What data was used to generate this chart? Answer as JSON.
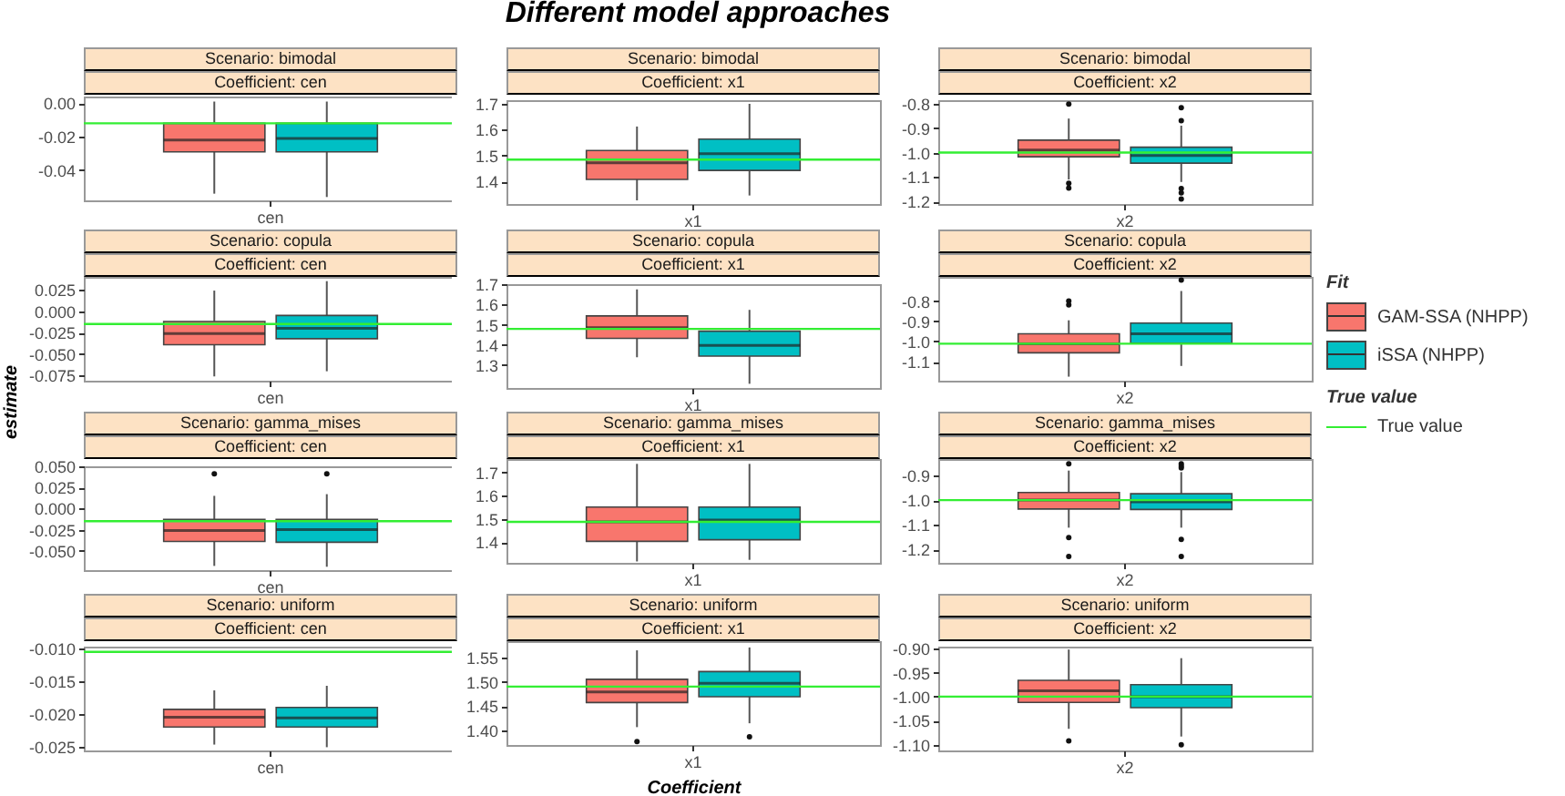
{
  "chart_data": [
    {
      "type": "box",
      "title": "Scenario: bimodal",
      "subtitle": "Coefficient: cen",
      "categories": [
        "cen"
      ],
      "series": [
        {
          "color": "#f8766d",
          "boxes": [
            {
              "low": -0.054,
              "q1": -0.029,
              "median": -0.022,
              "q3": -0.012,
              "high": 0.001
            }
          ]
        },
        {
          "color": "#00bfc4",
          "boxes": [
            {
              "low": -0.056,
              "q1": -0.029,
              "median": -0.021,
              "q3": -0.012,
              "high": 0.001
            }
          ]
        }
      ],
      "ylim": [
        -0.058,
        0.004
      ],
      "yticks": [
        {
          "value": 0,
          "label": "0.00"
        },
        {
          "value": -0.02,
          "label": "-0.02"
        },
        {
          "value": -0.04,
          "label": "-0.04"
        }
      ],
      "ref_lines": [
        {
          "axis": "y",
          "value": -0.012,
          "color": "#33ee33"
        }
      ]
    },
    {
      "type": "box",
      "title": "Scenario: bimodal",
      "subtitle": "Coefficient: x1",
      "categories": [
        "x1"
      ],
      "series": [
        {
          "color": "#f8766d",
          "boxes": [
            {
              "low": 1.326,
              "q1": 1.407,
              "median": 1.472,
              "q3": 1.519,
              "high": 1.612
            }
          ]
        },
        {
          "color": "#00bfc4",
          "boxes": [
            {
              "low": 1.345,
              "q1": 1.442,
              "median": 1.507,
              "q3": 1.563,
              "high": 1.7
            }
          ]
        }
      ],
      "ylim": [
        1.312,
        1.714
      ],
      "yticks": [
        1.4,
        1.5,
        1.6,
        1.7
      ],
      "ref_lines": [
        {
          "axis": "y",
          "value": 1.484,
          "color": "#33ee33"
        }
      ],
      "annotations": [
        "Different model approaches"
      ]
    },
    {
      "type": "box",
      "title": "Scenario: bimodal",
      "subtitle": "Coefficient: x2",
      "categories": [
        "x2"
      ],
      "series": [
        {
          "color": "#f8766d",
          "boxes": [
            {
              "low": -1.11,
              "q1": -1.017,
              "median": -0.99,
              "q3": -0.949,
              "high": -0.861,
              "outliers": [
                -0.802,
                -1.125,
                -1.145
              ]
            }
          ]
        },
        {
          "color": "#00bfc4",
          "boxes": [
            {
              "low": -1.12,
              "q1": -1.043,
              "median": -1.012,
              "q3": -0.978,
              "high": -0.89,
              "outliers": [
                -0.817,
                -0.87,
                -1.147,
                -1.164,
                -1.19
              ]
            }
          ]
        }
      ],
      "ylim": [
        -1.21,
        -0.786
      ],
      "yticks": [
        -0.8,
        -0.9,
        {
          "value": -1,
          "label": "-1.0"
        },
        -1.1,
        -1.2
      ],
      "ref_lines": [
        {
          "axis": "y",
          "value": -1.0,
          "color": "#33ee33"
        }
      ]
    },
    {
      "type": "box",
      "title": "Scenario: copula",
      "subtitle": "Coefficient: cen",
      "ylabel": "estimate",
      "categories": [
        "cen"
      ],
      "series": [
        {
          "color": "#f8766d",
          "boxes": [
            {
              "low": -0.076,
              "q1": -0.039,
              "median": -0.026,
              "q3": -0.012,
              "high": 0.024
            }
          ]
        },
        {
          "color": "#00bfc4",
          "boxes": [
            {
              "low": -0.07,
              "q1": -0.032,
              "median": -0.02,
              "q3": -0.005,
              "high": 0.035
            }
          ]
        }
      ],
      "ylim": [
        -0.081,
        0.04
      ],
      "yticks": [
        0.025,
        {
          "value": 0,
          "label": "0.000"
        },
        -0.025,
        {
          "value": -0.05,
          "label": "-0.050"
        },
        -0.075
      ],
      "ref_lines": [
        {
          "axis": "y",
          "value": -0.015,
          "color": "#33ee33"
        }
      ]
    },
    {
      "type": "box",
      "title": "Scenario: copula",
      "subtitle": "Coefficient: x1",
      "categories": [
        "x1"
      ],
      "series": [
        {
          "color": "#f8766d",
          "boxes": [
            {
              "low": 1.338,
              "q1": 1.432,
              "median": 1.485,
              "q3": 1.544,
              "high": 1.676
            }
          ]
        },
        {
          "color": "#00bfc4",
          "boxes": [
            {
              "low": 1.206,
              "q1": 1.344,
              "median": 1.397,
              "q3": 1.468,
              "high": 1.574
            }
          ]
        }
      ],
      "ylim": [
        1.185,
        1.702
      ],
      "yticks": [
        1.3,
        1.4,
        1.5,
        1.6,
        1.7
      ],
      "ref_lines": [
        {
          "axis": "y",
          "value": 1.479,
          "color": "#33ee33"
        }
      ]
    },
    {
      "type": "box",
      "title": "Scenario: copula",
      "subtitle": "Coefficient: x2",
      "legend": "right",
      "legend_title": "Fit",
      "annotations": [
        "True value"
      ],
      "categories": [
        "x2"
      ],
      "series": [
        {
          "name": "GAM-SSA (NHPP)",
          "color": "#f8766d",
          "boxes": [
            {
              "low": -1.174,
              "q1": -1.056,
              "median": -1.011,
              "q3": -0.962,
              "high": -0.895,
              "outliers": [
                -0.8,
                -0.819
              ]
            }
          ]
        },
        {
          "name": "iSSA (NHPP)",
          "color": "#00bfc4",
          "boxes": [
            {
              "low": -1.121,
              "q1": -1.008,
              "median": -0.962,
              "q3": -0.909,
              "high": -0.75,
              "outliers": [
                -0.696
              ]
            }
          ]
        }
      ],
      "ylim": [
        -1.194,
        -0.68
      ],
      "yticks": [
        -0.8,
        -0.9,
        {
          "value": -1,
          "label": "-1.0"
        },
        -1.1
      ],
      "ref_lines": [
        {
          "axis": "y",
          "value": -1.011,
          "label": "True value",
          "color": "#33ee33"
        }
      ]
    },
    {
      "type": "box",
      "title": "Scenario: gamma_mises",
      "subtitle": "Coefficient: cen",
      "categories": [
        "cen"
      ],
      "series": [
        {
          "color": "#f8766d",
          "boxes": [
            {
              "low": -0.068,
              "q1": -0.039,
              "median": -0.026,
              "q3": -0.013,
              "high": 0.015,
              "outliers": [
                0.041
              ]
            }
          ]
        },
        {
          "color": "#00bfc4",
          "boxes": [
            {
              "low": -0.069,
              "q1": -0.04,
              "median": -0.025,
              "q3": -0.013,
              "high": 0.017,
              "outliers": [
                0.041
              ]
            }
          ]
        }
      ],
      "ylim": [
        -0.073,
        0.05
      ],
      "yticks": [
        {
          "value": 0.05,
          "label": "0.050"
        },
        0.025,
        {
          "value": 0,
          "label": "0.000"
        },
        -0.025,
        {
          "value": -0.05,
          "label": "-0.050"
        }
      ],
      "ref_lines": [
        {
          "axis": "y",
          "value": -0.015,
          "color": "#33ee33"
        }
      ]
    },
    {
      "type": "box",
      "title": "Scenario: gamma_mises",
      "subtitle": "Coefficient: x1",
      "categories": [
        "x1"
      ],
      "series": [
        {
          "color": "#f8766d",
          "boxes": [
            {
              "low": 1.316,
              "q1": 1.403,
              "median": 1.487,
              "q3": 1.551,
              "high": 1.738
            }
          ]
        },
        {
          "color": "#00bfc4",
          "boxes": [
            {
              "low": 1.323,
              "q1": 1.41,
              "median": 1.495,
              "q3": 1.551,
              "high": 1.738
            }
          ]
        }
      ],
      "ylim": [
        1.31,
        1.759
      ],
      "yticks": [
        1.4,
        1.5,
        1.6,
        1.7
      ],
      "ref_lines": [
        {
          "axis": "y",
          "value": 1.487,
          "color": "#33ee33"
        }
      ]
    },
    {
      "type": "box",
      "title": "Scenario: gamma_mises",
      "subtitle": "Coefficient: x2",
      "categories": [
        "x2"
      ],
      "series": [
        {
          "color": "#f8766d",
          "boxes": [
            {
              "low": -1.112,
              "q1": -1.036,
              "median": -1.0,
              "q3": -0.969,
              "high": -0.88,
              "outliers": [
                -0.852,
                -1.152,
                -1.229
              ]
            }
          ]
        },
        {
          "color": "#00bfc4",
          "boxes": [
            {
              "low": -1.112,
              "q1": -1.038,
              "median": -1.007,
              "q3": -0.974,
              "high": -0.886,
              "outliers": [
                -0.852,
                -0.862,
                -0.869,
                -1.16,
                -1.229
              ]
            }
          ]
        }
      ],
      "ylim": [
        -1.255,
        -0.833
      ],
      "yticks": [
        -0.9,
        {
          "value": -1,
          "label": "-1.0"
        },
        -1.1,
        -1.2
      ],
      "ref_lines": [
        {
          "axis": "y",
          "value": -1.0,
          "color": "#33ee33"
        }
      ]
    },
    {
      "type": "box",
      "title": "Scenario: uniform",
      "subtitle": "Coefficient: cen",
      "categories": [
        "cen"
      ],
      "series": [
        {
          "color": "#f8766d",
          "boxes": [
            {
              "low": -0.0247,
              "q1": -0.022,
              "median": -0.0205,
              "q3": -0.0193,
              "high": -0.0164
            }
          ]
        },
        {
          "color": "#00bfc4",
          "boxes": [
            {
              "low": -0.0251,
              "q1": -0.022,
              "median": -0.0206,
              "q3": -0.019,
              "high": -0.0157
            }
          ]
        }
      ],
      "ylim": [
        -0.0256,
        -0.0097
      ],
      "yticks": [
        {
          "value": -0.01,
          "label": "-0.010"
        },
        -0.015,
        {
          "value": -0.02,
          "label": "-0.020"
        },
        -0.025
      ],
      "ref_lines": [
        {
          "axis": "y",
          "value": -0.0105,
          "color": "#33ee33"
        }
      ]
    },
    {
      "type": "box",
      "title": "Scenario: uniform",
      "subtitle": "Coefficient: x1",
      "xlabel": "Coefficient",
      "categories": [
        "x1"
      ],
      "series": [
        {
          "color": "#f8766d",
          "boxes": [
            {
              "low": 1.406,
              "q1": 1.457,
              "median": 1.479,
              "q3": 1.505,
              "high": 1.565,
              "outliers": [
                1.376
              ]
            }
          ]
        },
        {
          "color": "#00bfc4",
          "boxes": [
            {
              "low": 1.414,
              "q1": 1.469,
              "median": 1.497,
              "q3": 1.521,
              "high": 1.571,
              "outliers": [
                1.386
              ]
            }
          ]
        }
      ],
      "ylim": [
        1.369,
        1.584
      ],
      "yticks": [
        1.55,
        {
          "value": 1.5,
          "label": "1.50"
        },
        1.45,
        {
          "value": 1.4,
          "label": "1.40"
        }
      ],
      "ref_lines": [
        {
          "axis": "y",
          "value": 1.49,
          "color": "#33ee33"
        }
      ]
    },
    {
      "type": "box",
      "title": "Scenario: uniform",
      "subtitle": "Coefficient: x2",
      "categories": [
        "x2"
      ],
      "series": [
        {
          "color": "#f8766d",
          "boxes": [
            {
              "low": -1.067,
              "q1": -1.012,
              "median": -0.988,
              "q3": -0.966,
              "high": -0.902,
              "outliers": [
                -1.092
              ]
            }
          ]
        },
        {
          "color": "#00bfc4",
          "boxes": [
            {
              "low": -1.083,
              "q1": -1.023,
              "median": -1.0,
              "q3": -0.975,
              "high": -0.92,
              "outliers": [
                -1.1
              ]
            }
          ]
        }
      ],
      "ylim": [
        -1.112,
        -0.896
      ],
      "yticks": [
        {
          "value": -0.9,
          "label": "-0.90"
        },
        -0.95,
        {
          "value": -1,
          "label": "-1.00"
        },
        -1.05,
        {
          "value": -1.1,
          "label": "-1.10"
        }
      ],
      "ref_lines": [
        {
          "axis": "y",
          "value": -1.0,
          "color": "#33ee33"
        }
      ]
    }
  ]
}
